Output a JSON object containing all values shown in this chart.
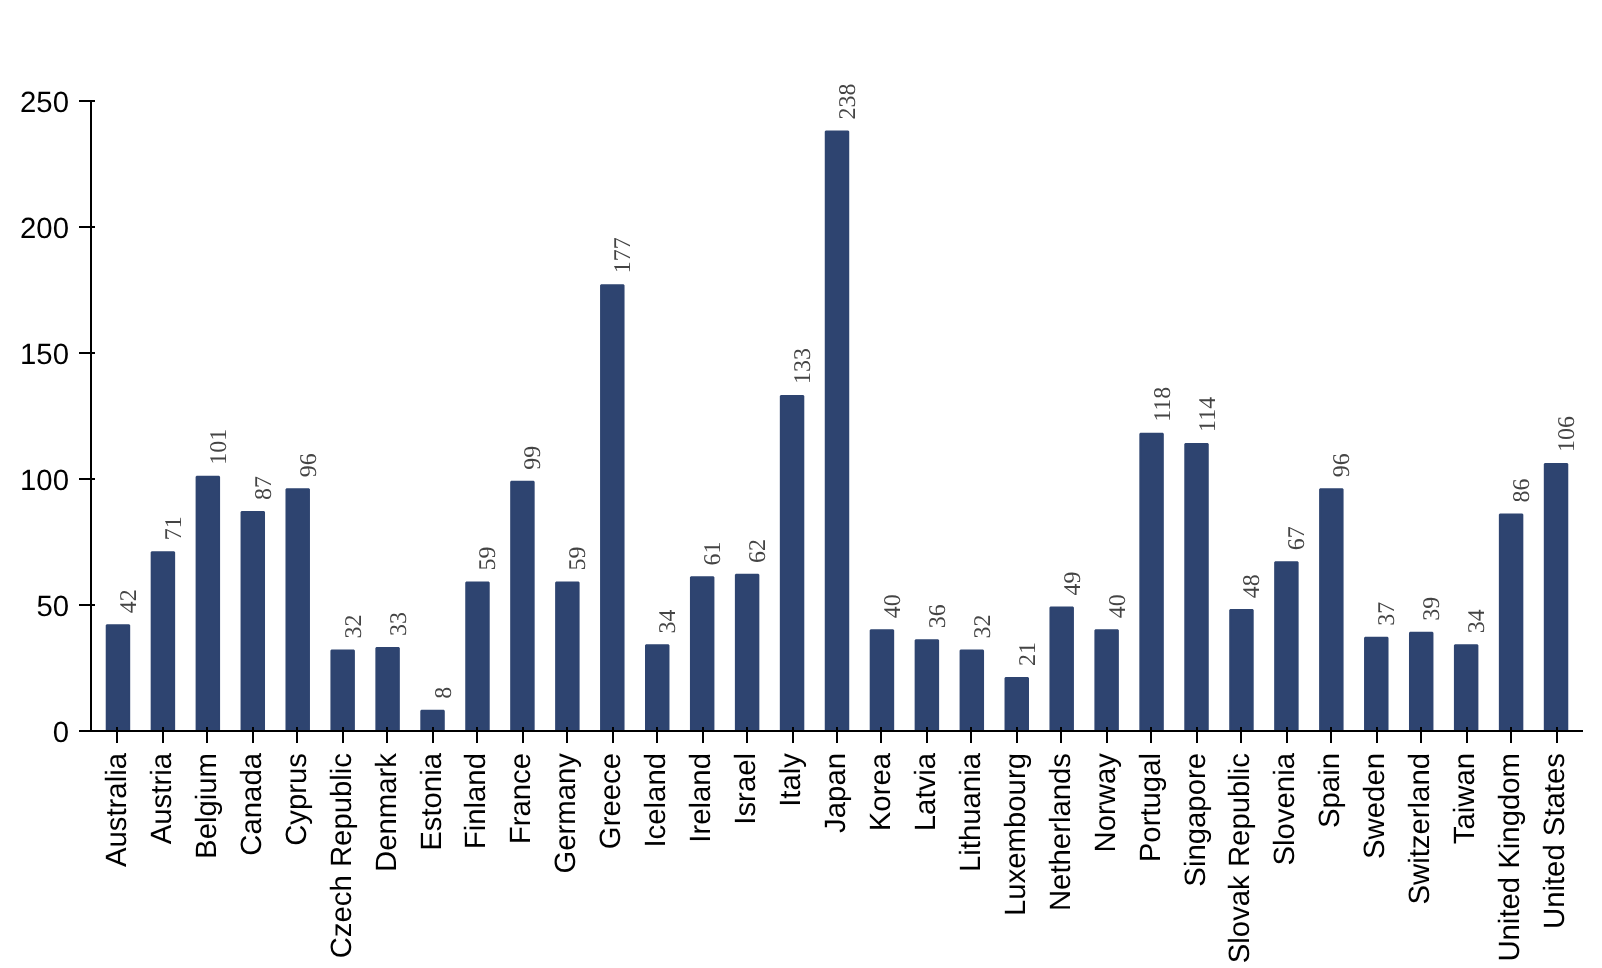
{
  "chart_data": {
    "type": "bar",
    "categories": [
      "Australia",
      "Austria",
      "Belgium",
      "Canada",
      "Cyprus",
      "Czech Republic",
      "Denmark",
      "Estonia",
      "Finland",
      "France",
      "Germany",
      "Greece",
      "Iceland",
      "Ireland",
      "Israel",
      "Italy",
      "Japan",
      "Korea",
      "Latvia",
      "Lithuania",
      "Luxembourg",
      "Netherlands",
      "Norway",
      "Portugal",
      "Singapore",
      "Slovak Republic",
      "Slovenia",
      "Spain",
      "Sweden",
      "Switzerland",
      "Taiwan",
      "United Kingdom",
      "United States"
    ],
    "values": [
      42,
      71,
      101,
      87,
      96,
      32,
      33,
      8,
      59,
      99,
      59,
      177,
      34,
      61,
      62,
      133,
      238,
      40,
      36,
      32,
      21,
      49,
      40,
      118,
      114,
      48,
      67,
      96,
      37,
      39,
      34,
      86,
      106
    ],
    "color": "#2e4470",
    "ylim": [
      0,
      250
    ],
    "yticks": [
      0,
      50,
      100,
      150,
      200,
      250
    ],
    "grid": false,
    "data_labels": true
  }
}
